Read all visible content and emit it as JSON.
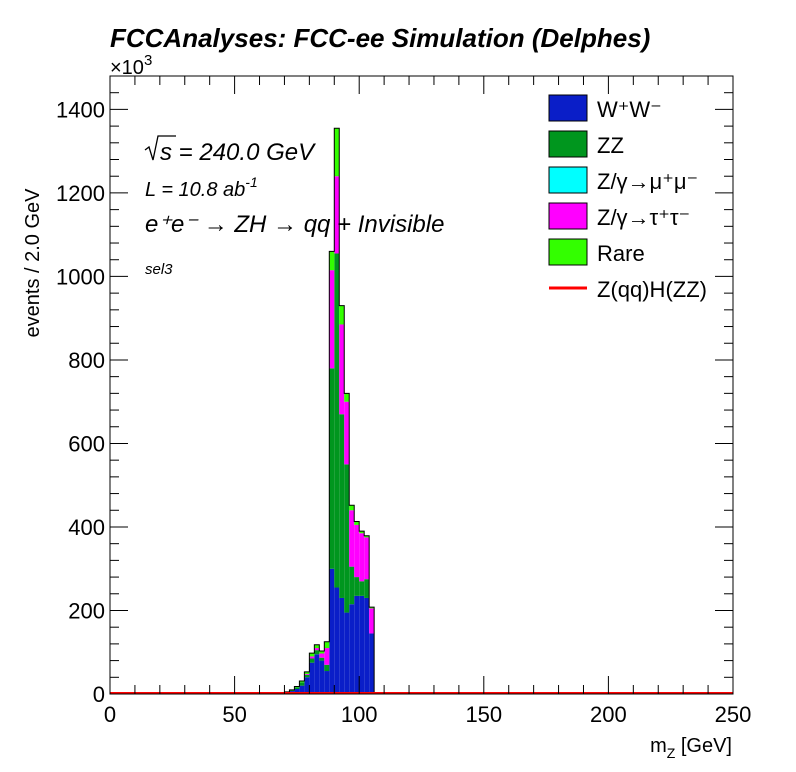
{
  "chart_data": {
    "type": "bar",
    "title": "FCCAnalyses: FCC-ee Simulation (Delphes)",
    "xlabel": "m_Z [GeV]",
    "ylabel": "events / 2.0 GeV",
    "y_multiplier": "×10^3",
    "xlim": [
      0,
      250
    ],
    "ylim": [
      0,
      1480
    ],
    "x_ticks": [
      0,
      50,
      100,
      150,
      200,
      250
    ],
    "y_ticks": [
      0,
      200,
      400,
      600,
      800,
      1000,
      1200,
      1400
    ],
    "grid": false,
    "legend_position": "top-right",
    "stacked": true,
    "bin_width": 2.0,
    "bin_edges": [
      70,
      72,
      74,
      76,
      78,
      80,
      82,
      84,
      86,
      88,
      90,
      92,
      94,
      96,
      98,
      100,
      102,
      104,
      106
    ],
    "series": [
      {
        "name": "W⁺W⁻",
        "color": "#0a1ec8",
        "values": [
          3,
          7,
          12,
          20,
          40,
          75,
          95,
          80,
          55,
          300,
          255,
          230,
          195,
          215,
          235,
          235,
          230,
          145
        ]
      },
      {
        "name": "ZZ",
        "color": "#00961e",
        "values": [
          1,
          2,
          4,
          8,
          6,
          10,
          10,
          7,
          15,
          480,
          800,
          440,
          355,
          90,
          45,
          35,
          45,
          0
        ]
      },
      {
        "name": "Z/γ→μ⁺μ⁻",
        "color": "#00ffff",
        "values": [
          0,
          0,
          0,
          0,
          0,
          0,
          0,
          0,
          0,
          0,
          0,
          0,
          0,
          0,
          0,
          0,
          0,
          0
        ]
      },
      {
        "name": "Z/γ→τ⁺τ⁻",
        "color": "#ff00ff",
        "values": [
          0,
          0,
          0,
          0,
          2,
          5,
          5,
          10,
          40,
          235,
          185,
          215,
          150,
          135,
          125,
          115,
          100,
          60
        ]
      },
      {
        "name": "Rare",
        "color": "#33ff00",
        "values": [
          1,
          1,
          2,
          3,
          5,
          8,
          8,
          6,
          15,
          45,
          115,
          45,
          20,
          12,
          8,
          5,
          4,
          3
        ]
      },
      {
        "name": "Z(qq)H(ZZ)",
        "color": "#ff0000",
        "type": "line",
        "values": [
          0,
          0,
          0,
          0,
          0,
          0,
          0,
          0,
          0,
          1,
          2,
          1,
          1,
          0,
          0,
          0,
          0,
          0
        ]
      }
    ],
    "annotations": {
      "sqrt_s": "s = 240.0 GeV",
      "luminosity": "L = 10.8 ab",
      "luminosity_exp": "-1",
      "process": "e⁺e⁻ → ZH → qq + Invisible",
      "selection": "sel3"
    }
  }
}
